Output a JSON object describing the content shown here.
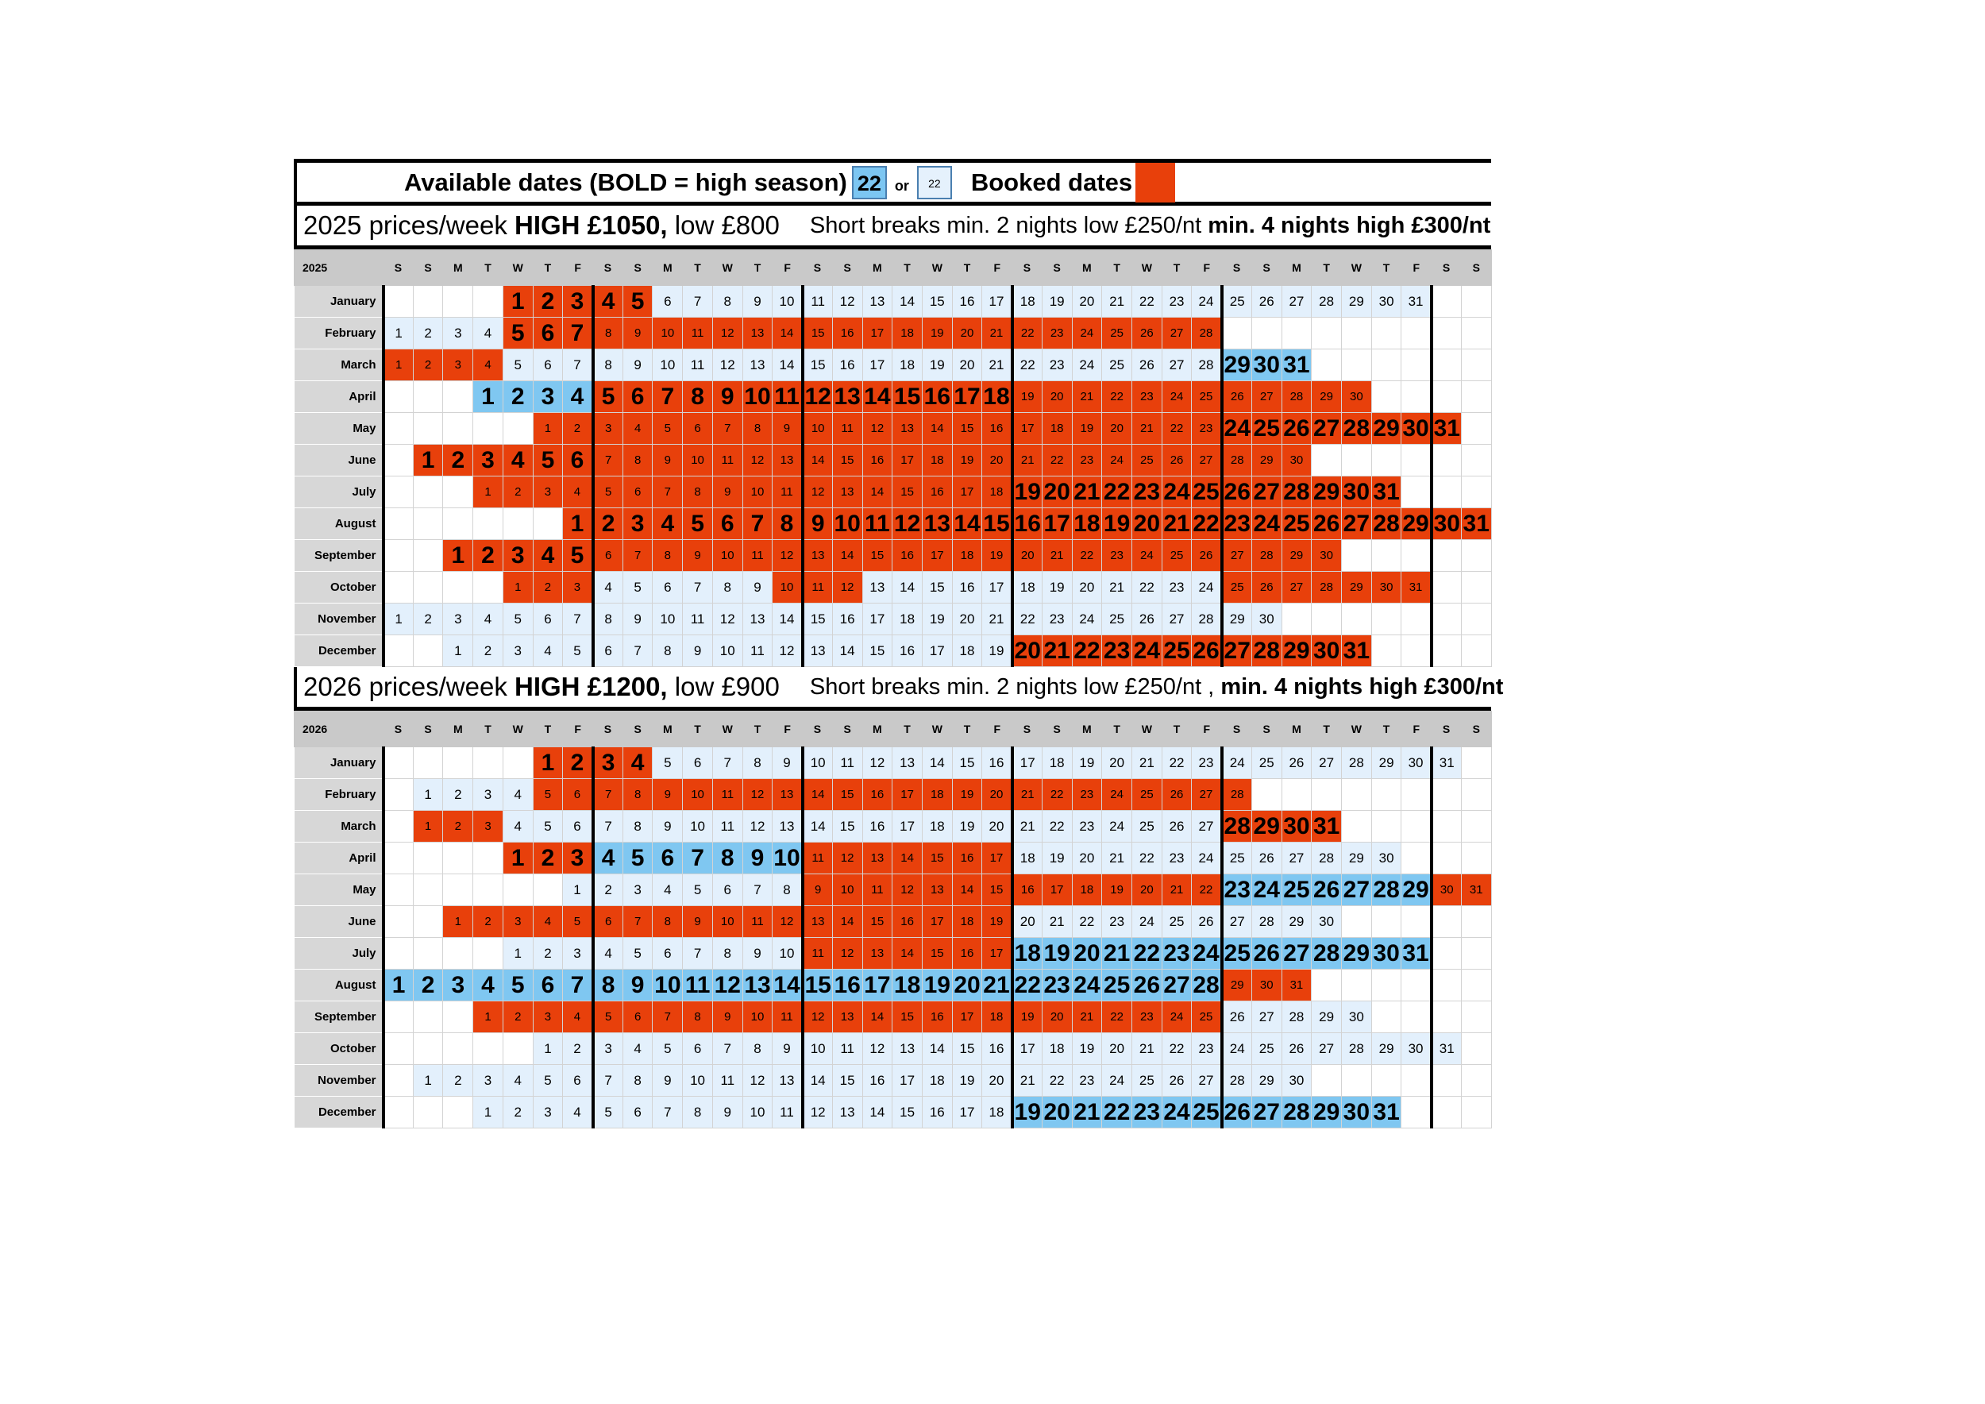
{
  "legend": {
    "available_label": "Available dates (BOLD = high season)",
    "high_sample": "22",
    "or_label": "or",
    "low_sample": "22",
    "booked_label": "Booked dates",
    "colors": {
      "high": "#7fc7f1",
      "low": "#e3f0fc",
      "booked": "#e8400b"
    }
  },
  "weekday_headers": [
    "S",
    "S",
    "M",
    "T",
    "W",
    "T",
    "F",
    "S",
    "S",
    "M",
    "T",
    "W",
    "T",
    "F",
    "S",
    "S",
    "M",
    "T",
    "W",
    "T",
    "F",
    "S",
    "S",
    "M",
    "T",
    "W",
    "T",
    "F",
    "S",
    "S",
    "M",
    "T",
    "W",
    "T",
    "F",
    "S",
    "S"
  ],
  "years": [
    {
      "year": "2025",
      "price_main": "2025 prices/week ",
      "price_high": "HIGH £1050,",
      "price_low": " low £800",
      "short_breaks": "Short breaks min. 2 nights low £250/nt ",
      "short_breaks_high": "min. 4 nights high £300/nt",
      "months": [
        {
          "name": "January",
          "start": 4,
          "days": 31,
          "high": [
            [
              1,
              5
            ]
          ],
          "booked": [
            [
              1,
              5
            ]
          ]
        },
        {
          "name": "February",
          "start": 0,
          "days": 28,
          "high": [
            [
              5,
              7
            ]
          ],
          "booked": [
            [
              5,
              28
            ]
          ]
        },
        {
          "name": "March",
          "start": 0,
          "days": 31,
          "high": [
            [
              29,
              31
            ]
          ],
          "booked": [
            [
              1,
              4
            ]
          ]
        },
        {
          "name": "April",
          "start": 3,
          "days": 30,
          "high": [
            [
              1,
              18
            ]
          ],
          "booked": [
            [
              5,
              30
            ]
          ]
        },
        {
          "name": "May",
          "start": 5,
          "days": 31,
          "high": [
            [
              24,
              31
            ]
          ],
          "booked": [
            [
              1,
              31
            ]
          ]
        },
        {
          "name": "June",
          "start": 1,
          "days": 30,
          "high": [
            [
              1,
              6
            ]
          ],
          "booked": [
            [
              1,
              30
            ]
          ]
        },
        {
          "name": "July",
          "start": 3,
          "days": 31,
          "high": [
            [
              19,
              31
            ]
          ],
          "booked": [
            [
              1,
              31
            ]
          ]
        },
        {
          "name": "August",
          "start": 6,
          "days": 31,
          "high": [
            [
              1,
              31
            ]
          ],
          "booked": [
            [
              1,
              31
            ]
          ]
        },
        {
          "name": "September",
          "start": 2,
          "days": 30,
          "high": [
            [
              1,
              5
            ]
          ],
          "booked": [
            [
              1,
              30
            ]
          ]
        },
        {
          "name": "October",
          "start": 4,
          "days": 31,
          "high": [],
          "booked": [
            [
              1,
              3
            ],
            [
              10,
              12
            ],
            [
              25,
              31
            ]
          ]
        },
        {
          "name": "November",
          "start": 0,
          "days": 30,
          "high": [],
          "booked": []
        },
        {
          "name": "December",
          "start": 2,
          "days": 31,
          "high": [
            [
              20,
              31
            ]
          ],
          "booked": [
            [
              20,
              31
            ]
          ]
        }
      ]
    },
    {
      "year": "2026",
      "price_main": "2026 prices/week ",
      "price_high": "HIGH £1200,",
      "price_low": " low £900",
      "short_breaks": "Short breaks min. 2 nights low £250/nt , ",
      "short_breaks_high": "min. 4 nights high £300/nt",
      "months": [
        {
          "name": "January",
          "start": 5,
          "days": 31,
          "high": [
            [
              1,
              4
            ]
          ],
          "booked": [
            [
              1,
              4
            ]
          ]
        },
        {
          "name": "February",
          "start": 1,
          "days": 28,
          "high": [],
          "booked": [
            [
              5,
              28
            ]
          ]
        },
        {
          "name": "March",
          "start": 1,
          "days": 31,
          "high": [
            [
              28,
              31
            ]
          ],
          "booked": [
            [
              1,
              3
            ],
            [
              28,
              31
            ]
          ]
        },
        {
          "name": "April",
          "start": 4,
          "days": 30,
          "high": [
            [
              1,
              10
            ]
          ],
          "booked": [
            [
              1,
              3
            ],
            [
              11,
              17
            ]
          ]
        },
        {
          "name": "May",
          "start": 6,
          "days": 31,
          "high": [
            [
              23,
              29
            ]
          ],
          "booked": [
            [
              9,
              22
            ],
            [
              30,
              31
            ]
          ]
        },
        {
          "name": "June",
          "start": 2,
          "days": 30,
          "high": [],
          "booked": [
            [
              1,
              19
            ]
          ]
        },
        {
          "name": "July",
          "start": 4,
          "days": 31,
          "high": [
            [
              18,
              31
            ]
          ],
          "booked": [
            [
              11,
              17
            ]
          ]
        },
        {
          "name": "August",
          "start": 0,
          "days": 31,
          "high": [
            [
              1,
              28
            ]
          ],
          "booked": [
            [
              29,
              31
            ]
          ]
        },
        {
          "name": "September",
          "start": 3,
          "days": 30,
          "high": [],
          "booked": [
            [
              1,
              25
            ]
          ]
        },
        {
          "name": "October",
          "start": 5,
          "days": 31,
          "high": [],
          "booked": []
        },
        {
          "name": "November",
          "start": 1,
          "days": 30,
          "high": [],
          "booked": []
        },
        {
          "name": "December",
          "start": 3,
          "days": 31,
          "high": [
            [
              19,
              31
            ]
          ],
          "booked": []
        }
      ]
    }
  ]
}
